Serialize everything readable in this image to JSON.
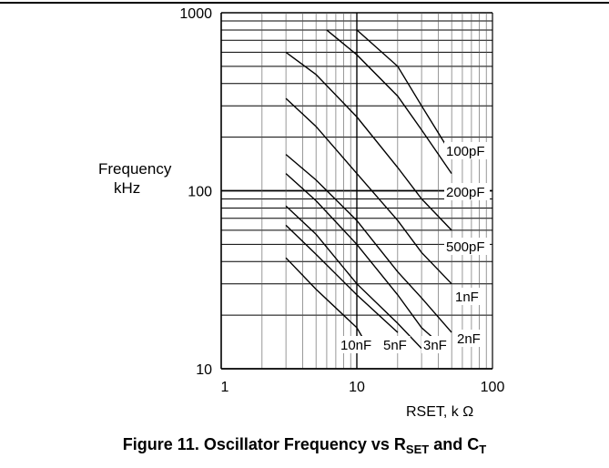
{
  "chart_data": {
    "type": "line",
    "title": "",
    "x_scale": "log",
    "y_scale": "log",
    "xlim": [
      1,
      100
    ],
    "ylim": [
      10,
      1000
    ],
    "xticks": [
      "1",
      "10",
      "100"
    ],
    "yticks": [
      "10",
      "100",
      "1000"
    ],
    "xlabel": "RSET, k Ω",
    "ylabel_line1": "Frequency",
    "ylabel_line2": "kHz",
    "grid": true,
    "series": [
      {
        "name": "100pF",
        "x": [
          6,
          10,
          20,
          30,
          50
        ],
        "y": [
          800,
          580,
          340,
          220,
          125
        ]
      },
      {
        "name": "100pF",
        "x": [
          10,
          20,
          30,
          50
        ],
        "y": [
          800,
          500,
          300,
          160
        ]
      },
      {
        "name": "200pF",
        "x": [
          3,
          5,
          10,
          20,
          30,
          50
        ],
        "y": [
          600,
          450,
          260,
          135,
          90,
          60
        ]
      },
      {
        "name": "500pF",
        "x": [
          3,
          5,
          10,
          20,
          30,
          50
        ],
        "y": [
          330,
          230,
          125,
          68,
          45,
          30
        ]
      },
      {
        "name": "1nF",
        "x": [
          3,
          5,
          10,
          20,
          30,
          50
        ],
        "y": [
          160,
          115,
          68,
          35,
          25,
          16
        ]
      },
      {
        "name": "2nF",
        "x": [
          3,
          5,
          10,
          20,
          30,
          40
        ],
        "y": [
          125,
          88,
          50,
          26,
          17,
          14
        ]
      },
      {
        "name": "3nF",
        "x": [
          3,
          5,
          10,
          20,
          30
        ],
        "y": [
          82,
          57,
          30,
          18,
          13
        ]
      },
      {
        "name": "5nF",
        "x": [
          3,
          5,
          10,
          20
        ],
        "y": [
          64,
          44,
          26,
          16
        ]
      },
      {
        "name": "10nF",
        "x": [
          3,
          5,
          10,
          11
        ],
        "y": [
          42,
          28,
          17,
          15
        ]
      }
    ],
    "series_labels": [
      "100pF",
      "200pF",
      "500pF",
      "1nF",
      "2nF",
      "3nF",
      "5nF",
      "10nF"
    ]
  },
  "caption": {
    "prefix": "Figure 11. Oscillator Frequency vs R",
    "sub1": "SET",
    "middle": " and C",
    "sub2": "T"
  }
}
